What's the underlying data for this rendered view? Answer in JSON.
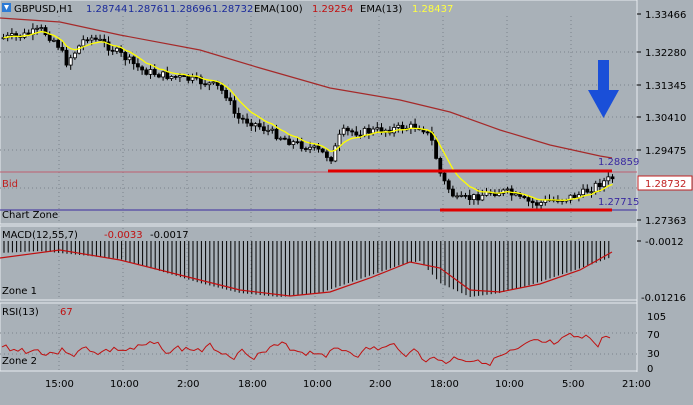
{
  "header": {
    "symbol": "GBPUSD,H1",
    "o": "1.28744",
    "h": "1.28761",
    "l": "1.28696",
    "c": "1.28732",
    "ema100_label": "EMA(100)",
    "ema100_value": "1.29254",
    "ema13_label": "EMA(13)",
    "ema13_value": "1.28437"
  },
  "price_scale": [
    "1.33466",
    "1.32280",
    "1.31345",
    "1.30410",
    "1.29475",
    "1.28732",
    "1.27363"
  ],
  "price_labels": {
    "bid": "Bid",
    "chart_zone": "Chart Zone",
    "upper_level": "1.28859",
    "lower_level": "1.27715",
    "bid_tag": "1.28732"
  },
  "macd": {
    "label": "MACD(12,55,7)",
    "v1": "-0.0033",
    "v2": "-0.0017",
    "zone": "Zone 1",
    "scale_top": "-0.0012",
    "scale_bottom": "-0.01216"
  },
  "rsi": {
    "label": "RSI(13)",
    "value": "67",
    "zone": "Zone 2",
    "scale": [
      "105",
      "70",
      "30",
      "0"
    ]
  },
  "time_axis": [
    "15:00",
    "10:00",
    "2:00",
    "18:00",
    "10:00",
    "2:00",
    "18:00",
    "10:00",
    "5:00",
    "21:00"
  ],
  "colors": {
    "panel_bg": "#a9b1b8",
    "candle": "#000000",
    "ema100": "#a52a2a",
    "ema13": "#ffff00",
    "level_line": "#e00000",
    "zone_text": "#3a2aa0",
    "arrow": "#1a4fd8",
    "header_blue": "#1a2a9a",
    "header_red": "#c01010",
    "header_yellow": "#ffff40"
  },
  "icons": {
    "symbol_arrow": "down-arrow-icon",
    "signal_arrow": "down-arrow-icon"
  }
}
